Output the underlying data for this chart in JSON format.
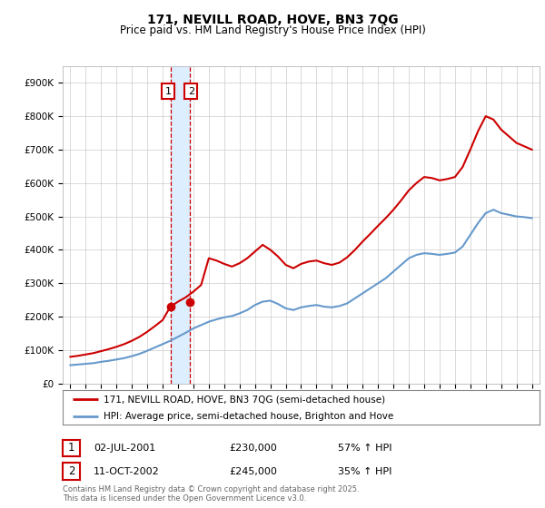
{
  "title": "171, NEVILL ROAD, HOVE, BN3 7QG",
  "subtitle": "Price paid vs. HM Land Registry's House Price Index (HPI)",
  "legend_line1": "171, NEVILL ROAD, HOVE, BN3 7QG (semi-detached house)",
  "legend_line2": "HPI: Average price, semi-detached house, Brighton and Hove",
  "copyright": "Contains HM Land Registry data © Crown copyright and database right 2025.\nThis data is licensed under the Open Government Licence v3.0.",
  "transactions": [
    {
      "num": "1",
      "date": "02-JUL-2001",
      "price": "£230,000",
      "hpi": "57% ↑ HPI"
    },
    {
      "num": "2",
      "date": "11-OCT-2002",
      "price": "£245,000",
      "hpi": "35% ↑ HPI"
    }
  ],
  "sale_dates": [
    2001.5,
    2002.79
  ],
  "sale_prices": [
    230000,
    245000
  ],
  "red_color": "#cc0000",
  "blue_color": "#6699cc",
  "shade_color": "#ddeeff",
  "dashed_color": "#cc0000",
  "ylim": [
    0,
    950000
  ],
  "yticks": [
    0,
    100000,
    200000,
    300000,
    400000,
    500000,
    600000,
    700000,
    800000,
    900000
  ],
  "xlim": [
    1994.5,
    2025.5
  ],
  "hpi_years": [
    1995,
    1995.5,
    1996,
    1996.5,
    1997,
    1997.5,
    1998,
    1998.5,
    1999,
    1999.5,
    2000,
    2000.5,
    2001,
    2001.5,
    2002,
    2002.5,
    2003,
    2003.5,
    2004,
    2004.5,
    2005,
    2005.5,
    2006,
    2006.5,
    2007,
    2007.5,
    2008,
    2008.5,
    2009,
    2009.5,
    2010,
    2010.5,
    2011,
    2011.5,
    2012,
    2012.5,
    2013,
    2013.5,
    2014,
    2014.5,
    2015,
    2015.5,
    2016,
    2016.5,
    2017,
    2017.5,
    2018,
    2018.5,
    2019,
    2019.5,
    2020,
    2020.5,
    2021,
    2021.5,
    2022,
    2022.5,
    2023,
    2023.5,
    2024,
    2024.5,
    2025
  ],
  "hpi_values": [
    55000,
    57000,
    59000,
    61000,
    65000,
    68000,
    72000,
    76000,
    82000,
    89000,
    98000,
    108000,
    118000,
    128000,
    140000,
    152000,
    165000,
    175000,
    185000,
    192000,
    198000,
    202000,
    210000,
    220000,
    235000,
    245000,
    248000,
    238000,
    225000,
    220000,
    228000,
    232000,
    235000,
    230000,
    228000,
    232000,
    240000,
    255000,
    270000,
    285000,
    300000,
    315000,
    335000,
    355000,
    375000,
    385000,
    390000,
    388000,
    385000,
    388000,
    392000,
    410000,
    445000,
    480000,
    510000,
    520000,
    510000,
    505000,
    500000,
    498000,
    495000
  ],
  "red_years": [
    1995,
    1995.5,
    1996,
    1996.5,
    1997,
    1997.5,
    1998,
    1998.5,
    1999,
    1999.5,
    2000,
    2000.5,
    2001,
    2001.5,
    2002,
    2002.5,
    2003,
    2003.5,
    2004,
    2004.5,
    2005,
    2005.5,
    2006,
    2006.5,
    2007,
    2007.5,
    2008,
    2008.5,
    2009,
    2009.5,
    2010,
    2010.5,
    2011,
    2011.5,
    2012,
    2012.5,
    2013,
    2013.5,
    2014,
    2014.5,
    2015,
    2015.5,
    2016,
    2016.5,
    2017,
    2017.5,
    2018,
    2018.5,
    2019,
    2019.5,
    2020,
    2020.5,
    2021,
    2021.5,
    2022,
    2022.5,
    2023,
    2023.5,
    2024,
    2024.5,
    2025
  ],
  "red_values": [
    80000,
    83000,
    87000,
    91000,
    97000,
    103000,
    110000,
    118000,
    128000,
    140000,
    155000,
    172000,
    190000,
    230000,
    245000,
    258000,
    275000,
    295000,
    375000,
    368000,
    358000,
    350000,
    360000,
    375000,
    395000,
    415000,
    400000,
    380000,
    355000,
    345000,
    358000,
    365000,
    368000,
    360000,
    355000,
    362000,
    378000,
    400000,
    425000,
    448000,
    472000,
    495000,
    520000,
    548000,
    578000,
    600000,
    618000,
    615000,
    608000,
    612000,
    618000,
    648000,
    700000,
    755000,
    800000,
    790000,
    760000,
    740000,
    720000,
    710000,
    700000
  ]
}
